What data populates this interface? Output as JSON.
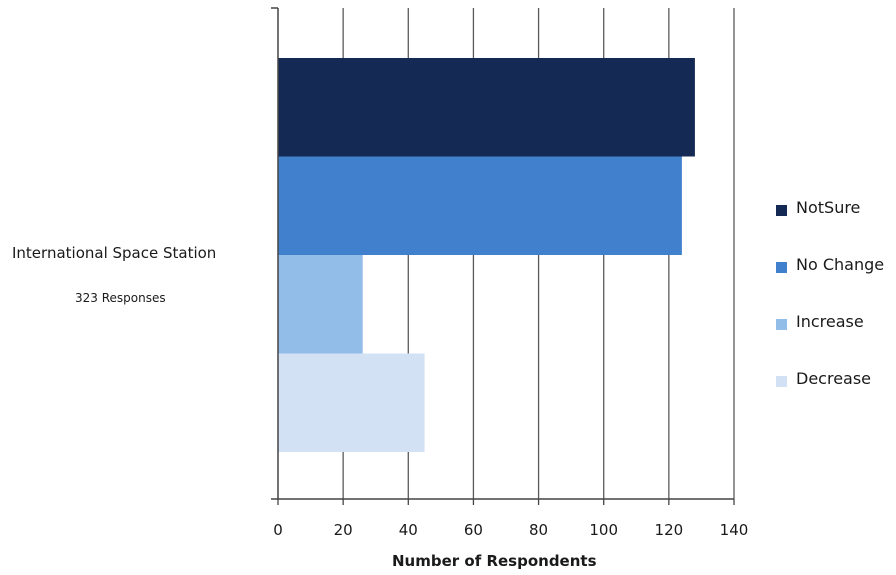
{
  "chart_data": {
    "type": "bar",
    "orientation": "horizontal",
    "category": "International Space Station",
    "category_note": "323 Responses",
    "series": [
      {
        "name": "NotSure",
        "value": 128,
        "color": "#142a54"
      },
      {
        "name": "No Change",
        "value": 124,
        "color": "#4180cc"
      },
      {
        "name": "Increase",
        "value": 26,
        "color": "#92bde8"
      },
      {
        "name": "Decrease",
        "value": 45,
        "color": "#d2e1f4"
      }
    ],
    "xlabel": "Number of Respondents",
    "xlim": [
      0,
      140
    ],
    "xticks": [
      "0",
      "20",
      "40",
      "60",
      "80",
      "100",
      "120",
      "140"
    ],
    "grid": true,
    "legend": "right"
  }
}
